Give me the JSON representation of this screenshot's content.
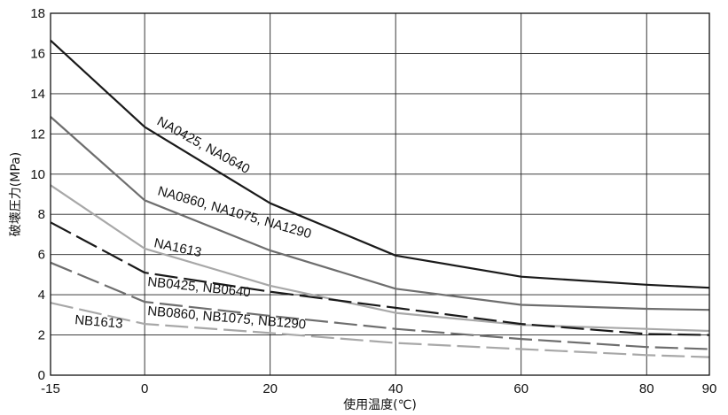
{
  "chart_data": {
    "type": "line",
    "xlabel": "使用温度(℃)",
    "ylabel": "破壊圧力(MPa)",
    "xlim": [
      -15,
      90
    ],
    "ylim": [
      0,
      18
    ],
    "x_ticks": [
      "-15",
      "0",
      "20",
      "40",
      "60",
      "80",
      "90"
    ],
    "y_ticks": [
      "0",
      "2",
      "4",
      "6",
      "8",
      "10",
      "12",
      "14",
      "16",
      "18"
    ],
    "grid": true,
    "series": [
      {
        "name": "NA0425, NA0640",
        "color": "#1a1a1a",
        "dash": "solid",
        "x": [
          -15,
          0,
          20,
          40,
          60,
          80,
          90
        ],
        "y": [
          16.65,
          12.35,
          8.55,
          5.95,
          4.9,
          4.5,
          4.35
        ]
      },
      {
        "name": "NA0860, NA1075, NA1290",
        "color": "#6e6e6e",
        "dash": "solid",
        "x": [
          -15,
          0,
          20,
          40,
          60,
          80,
          90
        ],
        "y": [
          12.85,
          8.7,
          6.2,
          4.3,
          3.5,
          3.3,
          3.25
        ]
      },
      {
        "name": "NA1613",
        "color": "#a8a8a8",
        "dash": "solid",
        "x": [
          -15,
          0,
          20,
          40,
          60,
          80,
          90
        ],
        "y": [
          9.45,
          6.3,
          4.45,
          3.1,
          2.5,
          2.3,
          2.2
        ]
      },
      {
        "name": "NB0425, NB0640",
        "color": "#1a1a1a",
        "dash": "long",
        "x": [
          -15,
          0,
          20,
          40,
          60,
          80,
          90
        ],
        "y": [
          7.6,
          5.1,
          4.15,
          3.35,
          2.55,
          2.05,
          2.0
        ]
      },
      {
        "name": "NB0860, NB1075, NB1290",
        "color": "#6e6e6e",
        "dash": "long",
        "x": [
          -15,
          0,
          20,
          40,
          60,
          80,
          90
        ],
        "y": [
          5.6,
          3.65,
          2.95,
          2.3,
          1.8,
          1.4,
          1.3
        ]
      },
      {
        "name": "NB1613",
        "color": "#a8a8a8",
        "dash": "long",
        "x": [
          -15,
          0,
          20,
          40,
          60,
          80,
          90
        ],
        "y": [
          3.6,
          2.55,
          2.1,
          1.6,
          1.3,
          1.0,
          0.9
        ]
      }
    ]
  }
}
